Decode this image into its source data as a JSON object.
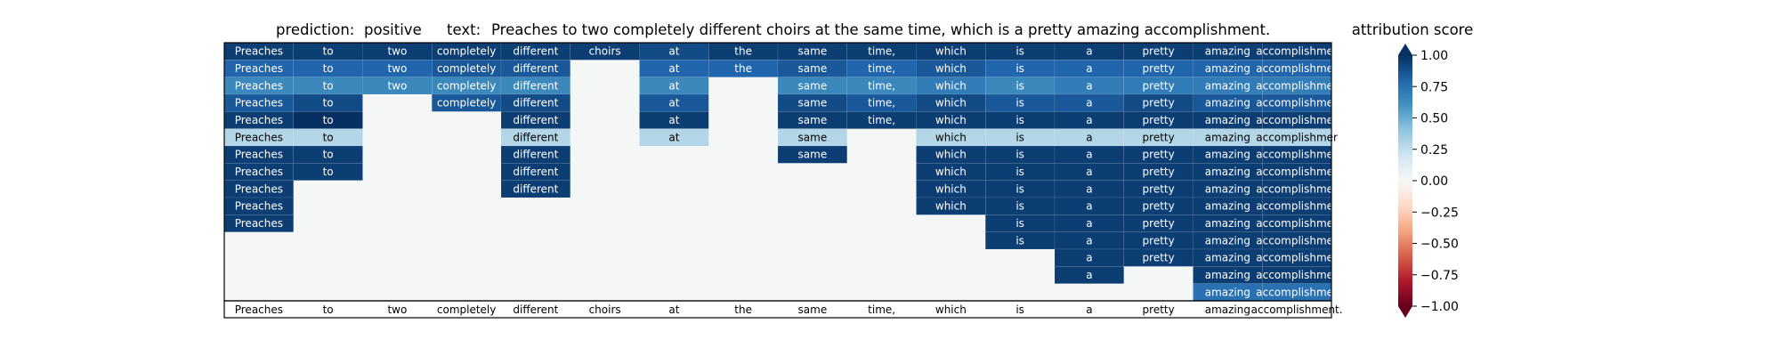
{
  "header": {
    "prediction_label": "prediction:",
    "prediction_value": "positive",
    "text_label": "text:",
    "text_value": "Preaches to two completely different choirs at the same time, which is a pretty amazing accomplishment."
  },
  "chart_data": {
    "type": "heatmap",
    "tokens": [
      "Preaches",
      "to",
      "two",
      "completely",
      "different",
      "choirs",
      "at",
      "the",
      "same",
      "time,",
      "which",
      "is",
      "a",
      "pretty",
      "amazing",
      "accomplishment."
    ],
    "cell_labels": [
      "Preaches",
      "to",
      "two",
      "completely",
      "different",
      "choirs",
      "at",
      "the",
      "same",
      "time,",
      "which",
      "is",
      "a",
      "pretty",
      "amazing",
      "accomplishmer"
    ],
    "rows": [
      [
        0.95,
        0.95,
        0.95,
        0.95,
        0.95,
        0.95,
        0.9,
        0.95,
        0.95,
        0.95,
        0.95,
        0.95,
        0.95,
        0.95,
        0.95,
        0.95
      ],
      [
        0.8,
        0.8,
        0.8,
        0.85,
        0.85,
        null,
        0.8,
        0.8,
        0.85,
        0.8,
        0.85,
        0.8,
        0.8,
        0.8,
        0.8,
        0.8
      ],
      [
        0.65,
        0.65,
        0.65,
        0.65,
        0.65,
        null,
        0.65,
        null,
        0.65,
        0.65,
        0.7,
        0.65,
        0.7,
        0.7,
        0.7,
        0.7
      ],
      [
        0.85,
        0.9,
        null,
        0.85,
        0.9,
        null,
        0.85,
        null,
        0.9,
        0.85,
        0.9,
        0.85,
        0.85,
        0.9,
        0.85,
        0.85
      ],
      [
        0.95,
        1.0,
        null,
        null,
        0.95,
        null,
        0.95,
        null,
        0.95,
        0.95,
        0.95,
        0.95,
        0.95,
        0.95,
        0.95,
        0.95
      ],
      [
        0.3,
        0.3,
        null,
        null,
        0.3,
        null,
        0.3,
        null,
        0.3,
        null,
        0.3,
        0.3,
        0.3,
        0.3,
        0.3,
        0.3
      ],
      [
        0.95,
        0.95,
        null,
        null,
        0.95,
        null,
        null,
        null,
        0.95,
        null,
        0.95,
        0.95,
        0.95,
        0.95,
        0.95,
        0.95
      ],
      [
        0.95,
        0.95,
        null,
        null,
        0.95,
        null,
        null,
        null,
        null,
        null,
        0.95,
        0.95,
        0.95,
        0.95,
        0.95,
        0.95
      ],
      [
        0.95,
        null,
        null,
        null,
        0.95,
        null,
        null,
        null,
        null,
        null,
        0.95,
        0.95,
        0.95,
        0.95,
        0.95,
        0.95
      ],
      [
        0.95,
        null,
        null,
        null,
        null,
        null,
        null,
        null,
        null,
        null,
        0.95,
        0.95,
        0.95,
        0.95,
        0.95,
        0.95
      ],
      [
        0.95,
        null,
        null,
        null,
        null,
        null,
        null,
        null,
        null,
        null,
        null,
        0.95,
        0.95,
        0.95,
        0.95,
        0.95
      ],
      [
        null,
        null,
        null,
        null,
        null,
        null,
        null,
        null,
        null,
        null,
        null,
        0.95,
        0.95,
        0.95,
        0.95,
        0.95
      ],
      [
        null,
        null,
        null,
        null,
        null,
        null,
        null,
        null,
        null,
        null,
        null,
        null,
        0.95,
        0.95,
        0.95,
        0.95
      ],
      [
        null,
        null,
        null,
        null,
        null,
        null,
        null,
        null,
        null,
        null,
        null,
        null,
        0.95,
        null,
        0.95,
        0.95
      ],
      [
        null,
        null,
        null,
        null,
        null,
        null,
        null,
        null,
        null,
        null,
        null,
        null,
        null,
        null,
        0.75,
        0.75
      ]
    ],
    "colorbar": {
      "title": "attribution score",
      "ticks": [
        "1.00",
        "0.75",
        "0.50",
        "0.25",
        "0.00",
        "−0.25",
        "−0.50",
        "−0.75",
        "−1.00"
      ],
      "range": [
        -1,
        1
      ],
      "colormap": "RdBu"
    },
    "empty_color": "#f5f6f6",
    "grid": false
  }
}
